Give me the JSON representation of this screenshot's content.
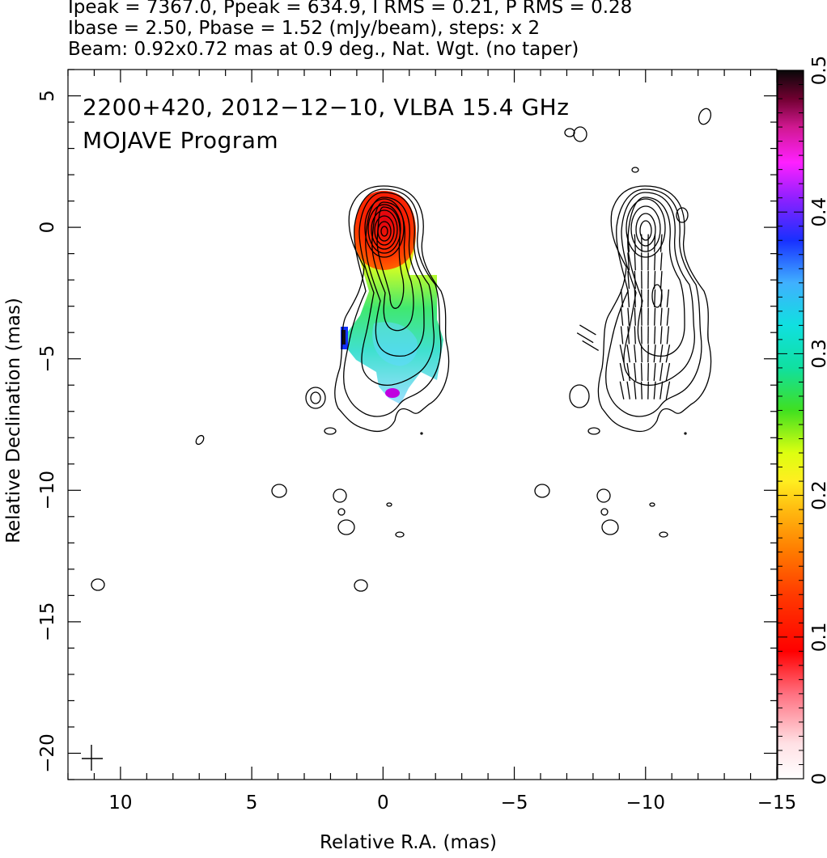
{
  "header": {
    "line1": "Ipeak = 7367.0, Ppeak = 634.9, I RMS = 0.21, P RMS = 0.28",
    "line2": "Ibase = 2.50, Pbase = 1.52 (mJy/beam), steps: x 2",
    "line3": "Beam: 0.92x0.72 mas at 0.9 deg., Nat. Wgt. (no taper)"
  },
  "annotations": {
    "source_line": "2200+420, 2012−12−10, VLBA 15.4 GHz",
    "program_line": "MOJAVE Program"
  },
  "chart_data": {
    "type": "heatmap",
    "description_type": "radio contour map with fractional polarization color overlay and EVPA vector panel",
    "xlabel": "Relative R.A. (mas)",
    "ylabel": "Relative Declination (mas)",
    "xlim": [
      12,
      -15
    ],
    "ylim": [
      -21,
      6
    ],
    "xticks": [
      10,
      5,
      0,
      -5,
      -10,
      -15
    ],
    "xtick_labels": [
      "10",
      "5",
      "0",
      "−5",
      "−10",
      "−15"
    ],
    "yticks": [
      5,
      0,
      -5,
      -10,
      -15,
      -20
    ],
    "ytick_labels": [
      "5",
      "0",
      "−5",
      "−10",
      "−15",
      "−20"
    ],
    "colorbar": {
      "range": [
        0,
        0.5
      ],
      "ticks": [
        0,
        0.1,
        0.2,
        0.3,
        0.4,
        0.5
      ],
      "tick_labels": [
        "0",
        "0.1",
        "0.2",
        "0.3",
        "0.4",
        "0.5"
      ]
    },
    "left_panel": {
      "core": [
        0,
        0
      ],
      "contour_levels_count": 12,
      "polarization_regions": [
        {
          "x": 0.0,
          "y": 0.0,
          "frac_pol": 0.1
        },
        {
          "x": -0.3,
          "y": -2.2,
          "frac_pol": 0.17
        },
        {
          "x": -0.2,
          "y": -3.8,
          "frac_pol": 0.28
        },
        {
          "x": 0.5,
          "y": -4.6,
          "frac_pol": 0.22
        },
        {
          "x": -0.5,
          "y": -5.0,
          "frac_pol": 0.27
        },
        {
          "x": -0.2,
          "y": -6.2,
          "frac_pol": 0.42
        },
        {
          "x": 1.5,
          "y": -4.3,
          "frac_pol": 0.45
        }
      ],
      "isolated_components": [
        {
          "x": 2.5,
          "y": -6.5
        },
        {
          "x": 7.0,
          "y": -8.1
        },
        {
          "x": 4.0,
          "y": -10.0
        },
        {
          "x": 1.6,
          "y": -10.1
        },
        {
          "x": 1.5,
          "y": -10.8
        },
        {
          "x": 1.4,
          "y": -11.3
        },
        {
          "x": -0.2,
          "y": -10.5
        },
        {
          "x": -0.6,
          "y": -11.6
        },
        {
          "x": 0.9,
          "y": -13.2
        },
        {
          "x": 11.0,
          "y": -13.2
        },
        {
          "x": 2.0,
          "y": -7.8
        }
      ]
    },
    "right_panel": {
      "core": [
        -10,
        0
      ],
      "evpa_orientation": "roughly north-south",
      "isolated_components": [
        {
          "x": -7.5,
          "y": 3.6
        },
        {
          "x": -9.6,
          "y": 2.2
        },
        {
          "x": -11.3,
          "y": 0.5
        },
        {
          "x": -12.2,
          "y": 4.2
        },
        {
          "x": -7.4,
          "y": -6.4
        },
        {
          "x": -8.0,
          "y": -7.7
        },
        {
          "x": -6.0,
          "y": -10.0
        },
        {
          "x": -8.5,
          "y": -10.1
        },
        {
          "x": -8.5,
          "y": -10.8
        },
        {
          "x": -8.6,
          "y": -11.3
        },
        {
          "x": -10.3,
          "y": -10.5
        },
        {
          "x": -10.7,
          "y": -11.6
        }
      ]
    },
    "beam_marker": {
      "x": 11.0,
      "y": -20.1
    }
  }
}
